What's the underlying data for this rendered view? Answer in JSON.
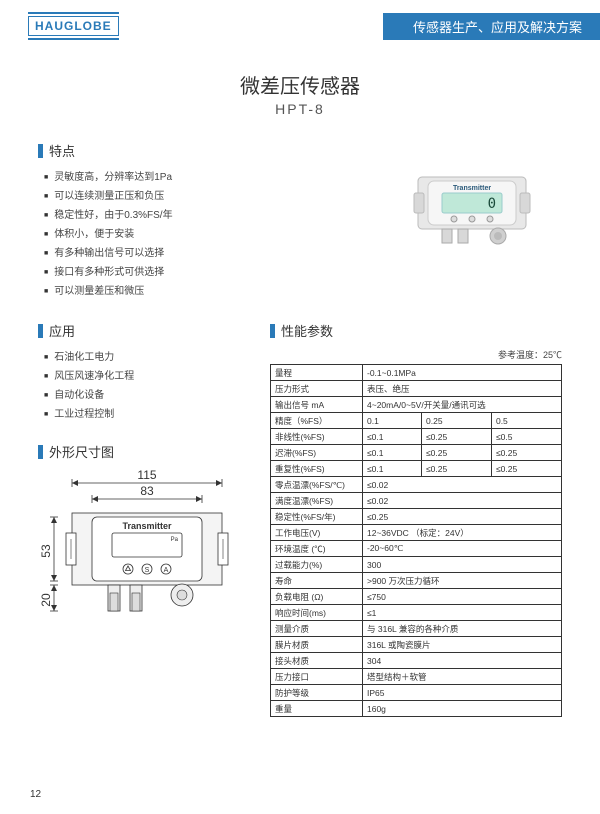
{
  "header": {
    "logo": "HAUGLOBE",
    "tagline": "传感器生产、应用及解决方案"
  },
  "title": {
    "main": "微差压传感器",
    "sub": "HPT-8"
  },
  "sections": {
    "features": "特点",
    "applications": "应用",
    "dimensions": "外形尺寸图",
    "specs": "性能参数"
  },
  "features": [
    "灵敏度高，分辨率达到1Pa",
    "可以连续测量正压和负压",
    "稳定性好，由于0.3%FS/年",
    "体积小，便于安装",
    "有多种输出信号可以选择",
    "接口有多种形式可供选择",
    "可以测量差压和微压"
  ],
  "applications": [
    "石油化工电力",
    "风压风速净化工程",
    "自动化设备",
    "工业过程控制"
  ],
  "dimensions": {
    "w_total": "115",
    "w_body": "83",
    "h_body": "53",
    "h_port": "20",
    "device_label": "Transmitter",
    "unit_label": "Pa",
    "btn_s": "S",
    "btn_a": "A"
  },
  "device_photo": {
    "label": "Transmitter",
    "reading": "0"
  },
  "spec_ref_temp": "参考温度：25℃",
  "spec_rows": [
    {
      "k": "量程",
      "v": [
        "-0.1~0.1MPa"
      ]
    },
    {
      "k": "压力形式",
      "v": [
        "表压、绝压"
      ]
    },
    {
      "k": "输出信号 mA",
      "v": [
        "4~20mA/0~5V/开关量/通讯可选"
      ]
    },
    {
      "k": "精度（%FS）",
      "v": [
        "0.1",
        "0.25",
        "0.5"
      ]
    },
    {
      "k": "非线性(%FS)",
      "v": [
        "≤0.1",
        "≤0.25",
        "≤0.5"
      ]
    },
    {
      "k": "迟滞(%FS)",
      "v": [
        "≤0.1",
        "≤0.25",
        "≤0.25"
      ]
    },
    {
      "k": "重复性(%FS)",
      "v": [
        "≤0.1",
        "≤0.25",
        "≤0.25"
      ]
    },
    {
      "k": "零点温漂(%FS/℃)",
      "v": [
        "≤0.02"
      ]
    },
    {
      "k": "满度温漂(%FS)",
      "v": [
        "≤0.02"
      ]
    },
    {
      "k": "稳定性(%FS/年)",
      "v": [
        "≤0.25"
      ]
    },
    {
      "k": "工作电压(V)",
      "v": [
        "12~36VDC （标定：24V）"
      ]
    },
    {
      "k": "环境温度 (℃)",
      "v": [
        "-20~60℃"
      ]
    },
    {
      "k": "过载能力(%)",
      "v": [
        "300"
      ]
    },
    {
      "k": "寿命",
      "v": [
        ">900 万次压力循环"
      ]
    },
    {
      "k": "负载电阻 (Ω)",
      "v": [
        "≤750"
      ]
    },
    {
      "k": "响应时间(ms)",
      "v": [
        "≤1"
      ]
    },
    {
      "k": "测量介质",
      "v": [
        "与 316L 兼容的各种介质"
      ]
    },
    {
      "k": "膜片材质",
      "v": [
        "316L 或陶瓷膜片"
      ]
    },
    {
      "k": "接头材质",
      "v": [
        "304"
      ]
    },
    {
      "k": "压力接口",
      "v": [
        "塔型结构＋软管"
      ]
    },
    {
      "k": "防护等级",
      "v": [
        "IP65"
      ]
    },
    {
      "k": "重量",
      "v": [
        "160g"
      ]
    }
  ],
  "page_number": "12",
  "colors": {
    "brand": "#2a7ab8",
    "text": "#333333",
    "border": "#333333",
    "lcd_bg": "#bfe8d8"
  }
}
